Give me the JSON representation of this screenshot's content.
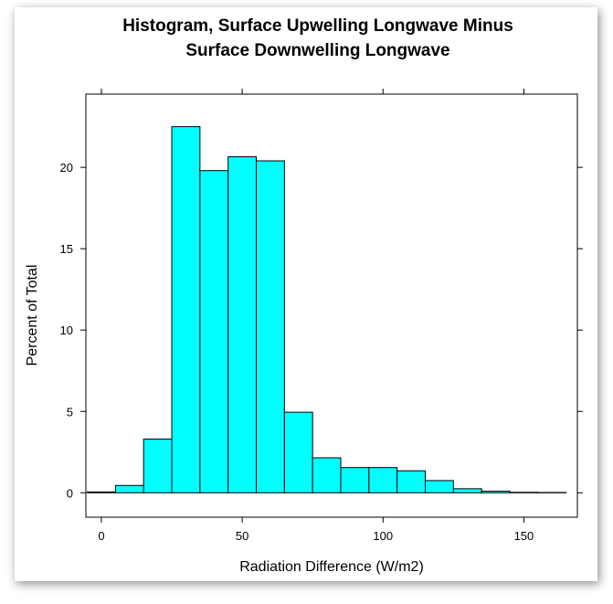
{
  "chart_data": {
    "type": "bar",
    "title": [
      "Histogram, Surface Upwelling Longwave Minus",
      "Surface Downwelling Longwave"
    ],
    "xlabel": "Radiation Difference (W/m2)",
    "ylabel": "Percent of Total",
    "xlim": [
      -5.5,
      169
    ],
    "ylim": [
      -1.5,
      24.5
    ],
    "x_ticks": [
      0,
      50,
      100,
      150
    ],
    "y_ticks": [
      0,
      5,
      10,
      15,
      20
    ],
    "bins": [
      {
        "start": -5,
        "end": 5,
        "value": 0.05
      },
      {
        "start": 5,
        "end": 15,
        "value": 0.45
      },
      {
        "start": 15,
        "end": 25,
        "value": 3.3
      },
      {
        "start": 25,
        "end": 35,
        "value": 22.5
      },
      {
        "start": 35,
        "end": 45,
        "value": 19.8
      },
      {
        "start": 45,
        "end": 55,
        "value": 20.65
      },
      {
        "start": 55,
        "end": 65,
        "value": 20.4
      },
      {
        "start": 65,
        "end": 75,
        "value": 4.95
      },
      {
        "start": 75,
        "end": 85,
        "value": 2.15
      },
      {
        "start": 85,
        "end": 95,
        "value": 1.55
      },
      {
        "start": 95,
        "end": 105,
        "value": 1.55
      },
      {
        "start": 105,
        "end": 115,
        "value": 1.35
      },
      {
        "start": 115,
        "end": 125,
        "value": 0.75
      },
      {
        "start": 125,
        "end": 135,
        "value": 0.25
      },
      {
        "start": 135,
        "end": 145,
        "value": 0.1
      },
      {
        "start": 145,
        "end": 155,
        "value": 0.03
      },
      {
        "start": 155,
        "end": 165,
        "value": 0.02
      }
    ],
    "colors": {
      "bar_fill": "#00FFFF",
      "bar_stroke": "#000000"
    },
    "grid": false,
    "legend": "none"
  }
}
